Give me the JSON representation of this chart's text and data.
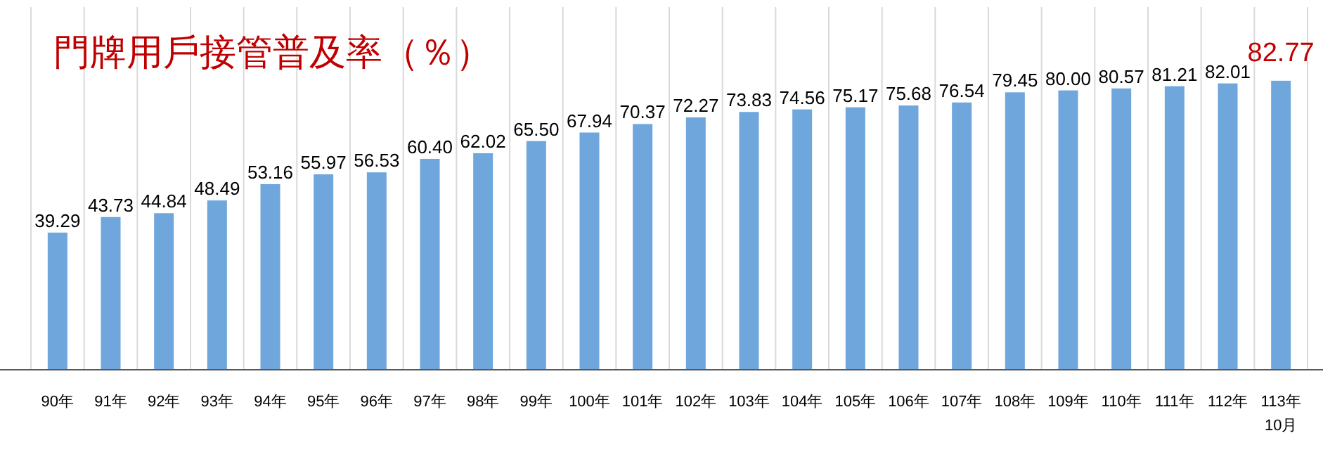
{
  "chart_data": {
    "type": "bar",
    "title": "門牌用戶接管普及率（％）",
    "categories": [
      "90年",
      "91年",
      "92年",
      "93年",
      "94年",
      "95年",
      "96年",
      "97年",
      "98年",
      "99年",
      "100年",
      "101年",
      "102年",
      "103年",
      "104年",
      "105年",
      "106年",
      "107年",
      "108年",
      "109年",
      "110年",
      "111年",
      "112年",
      "113年\n10月"
    ],
    "values": [
      39.29,
      43.73,
      44.84,
      48.49,
      53.16,
      55.97,
      56.53,
      60.4,
      62.02,
      65.5,
      67.94,
      70.37,
      72.27,
      73.83,
      74.56,
      75.17,
      75.68,
      76.54,
      79.45,
      80.0,
      80.57,
      81.21,
      82.01,
      82.77
    ],
    "value_labels": [
      "39.29",
      "43.73",
      "44.84",
      "48.49",
      "53.16",
      "55.97",
      "56.53",
      "60.40",
      "62.02",
      "65.50",
      "67.94",
      "70.37",
      "72.27",
      "73.83",
      "74.56",
      "75.17",
      "75.68",
      "76.54",
      "79.45",
      "80.00",
      "80.57",
      "81.21",
      "82.01",
      null
    ],
    "annotations": [
      {
        "text": "82.77",
        "x": "113年\n10月",
        "y": 82.77
      }
    ],
    "color": "#6fa6dc",
    "grid": "x"
  }
}
